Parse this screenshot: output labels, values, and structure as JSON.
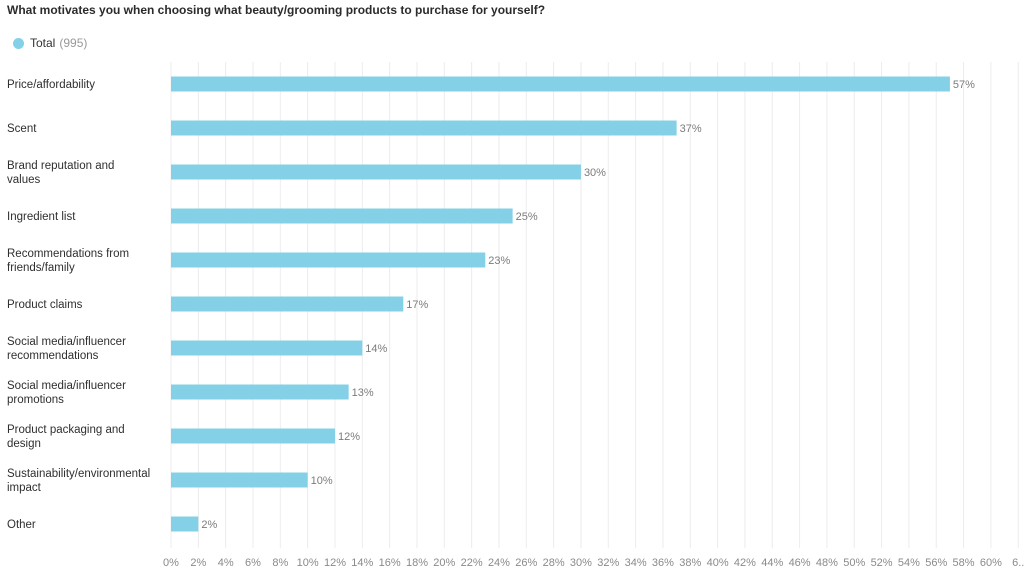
{
  "chart_data": {
    "type": "bar",
    "orientation": "horizontal",
    "title": "What motivates you when choosing what beauty/grooming products to purchase for yourself?",
    "legend": {
      "name": "Total",
      "count": "995"
    },
    "color": "#84d0e6",
    "categories": [
      "Price/affordability",
      "Scent",
      "Brand reputation and values",
      "Ingredient list",
      "Recommendations from friends/family",
      "Product claims",
      "Social media/influencer recommendations",
      "Social media/influencer promotions",
      "Product packaging and design",
      "Sustainability/environmental impact",
      "Other"
    ],
    "series": [
      {
        "name": "Total",
        "values": [
          57,
          37,
          30,
          25,
          23,
          17,
          14,
          13,
          12,
          10,
          2
        ],
        "data_labels": [
          "57%",
          "37%",
          "30%",
          "25%",
          "23%",
          "17%",
          "14%",
          "13%",
          "12%",
          "10%",
          "2%"
        ]
      }
    ],
    "x_ticks": [
      "0%",
      "2%",
      "4%",
      "6%",
      "8%",
      "10%",
      "12%",
      "14%",
      "16%",
      "18%",
      "20%",
      "22%",
      "24%",
      "26%",
      "28%",
      "30%",
      "32%",
      "34%",
      "36%",
      "38%",
      "40%",
      "42%",
      "44%",
      "46%",
      "48%",
      "50%",
      "52%",
      "54%",
      "56%",
      "58%",
      "60%",
      "6.."
    ],
    "xlim": [
      0,
      62
    ],
    "grid": true,
    "legend_position": "top-left"
  }
}
